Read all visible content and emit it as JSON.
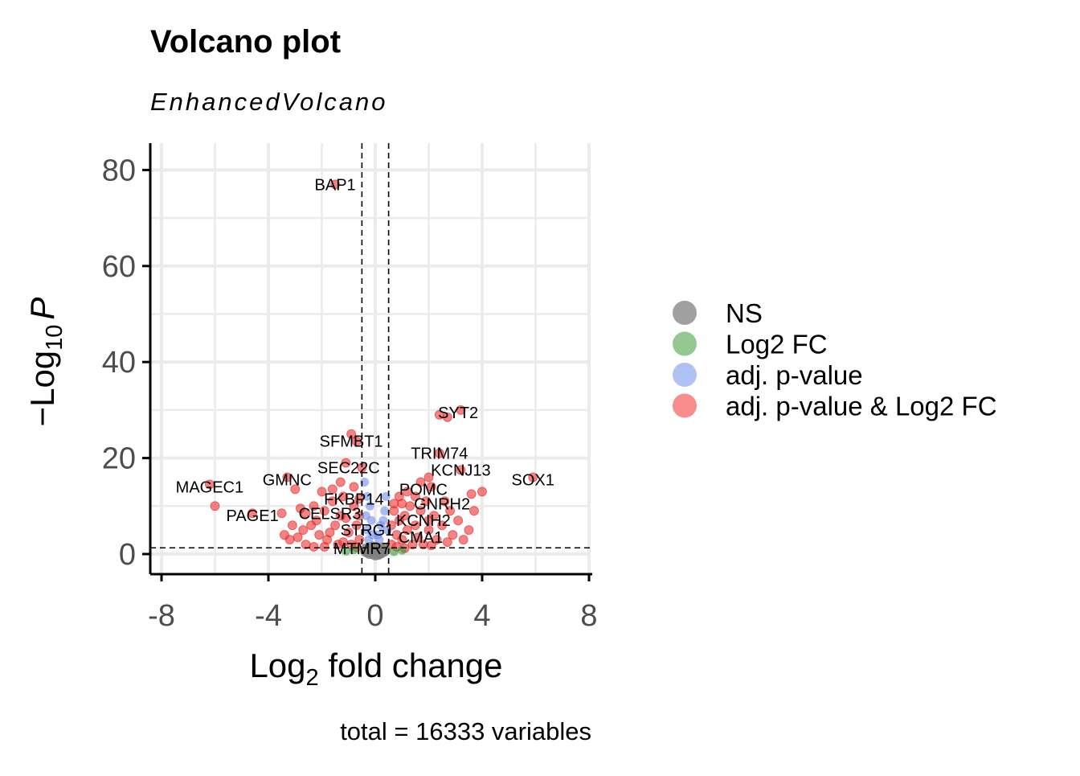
{
  "chart_data": {
    "type": "scatter",
    "title": "Volcano plot",
    "subtitle": "EnhancedVolcano",
    "xlabel": {
      "main": "Log",
      "sub": "2",
      "rest": " fold change"
    },
    "ylabel": {
      "pre": "−Log",
      "sub": "10",
      "italic": "P"
    },
    "caption": "total = 16333 variables",
    "xlim": [
      -8,
      8
    ],
    "ylim": [
      -3.5,
      86
    ],
    "x_ticks": [
      -8,
      -4,
      0,
      4,
      8
    ],
    "y_ticks": [
      0,
      20,
      40,
      60,
      80
    ],
    "fc_cutoff": 0.5,
    "p_cutoff_neglog": 1.3,
    "grid": true,
    "legend_position": "right",
    "legend": [
      {
        "key": "ns",
        "label": "NS",
        "color": "#808080"
      },
      {
        "key": "fc",
        "label": "Log2 FC",
        "color": "#3a9a3a"
      },
      {
        "key": "p",
        "label": "adj. p-value",
        "color": "#6f8eeb"
      },
      {
        "key": "both",
        "label": "adj. p-value & Log2 FC",
        "color": "#f03030"
      }
    ],
    "series": [
      {
        "key": "both",
        "points": [
          [
            -1.5,
            77
          ],
          [
            2.4,
            29
          ],
          [
            2.7,
            28.5
          ],
          [
            3.2,
            30
          ],
          [
            -0.9,
            25
          ],
          [
            -0.7,
            23.5
          ],
          [
            2.4,
            21
          ],
          [
            3.2,
            17.5
          ],
          [
            5.9,
            16
          ],
          [
            -1.1,
            19
          ],
          [
            -0.5,
            18
          ],
          [
            -3.3,
            16
          ],
          [
            -3.0,
            13.5
          ],
          [
            -6.2,
            14.5
          ],
          [
            -6.0,
            10
          ],
          [
            -4.6,
            8.5
          ],
          [
            -3.5,
            8.5
          ],
          [
            -3.1,
            6
          ],
          [
            -2.6,
            8.5
          ],
          [
            -2.7,
            5
          ],
          [
            1.7,
            15
          ],
          [
            2.0,
            16
          ],
          [
            2.1,
            14
          ],
          [
            3.6,
            12.5
          ],
          [
            4.0,
            13
          ],
          [
            3.7,
            9
          ],
          [
            3.1,
            7
          ],
          [
            3.5,
            5
          ],
          [
            -2.0,
            13
          ],
          [
            -2.3,
            10
          ],
          [
            -1.9,
            9
          ],
          [
            -1.6,
            11
          ],
          [
            -1.2,
            12
          ],
          [
            -1.3,
            8
          ],
          [
            -0.8,
            10
          ],
          [
            -0.7,
            6
          ],
          [
            -2.4,
            6
          ],
          [
            -2.1,
            4
          ],
          [
            -1.8,
            3
          ],
          [
            -1.4,
            2
          ],
          [
            -1.0,
            4.5
          ],
          [
            -0.6,
            3
          ],
          [
            -2.6,
            2
          ],
          [
            -1.9,
            1.5
          ],
          [
            0.7,
            9
          ],
          [
            0.9,
            12
          ],
          [
            1.1,
            8
          ],
          [
            1.3,
            10
          ],
          [
            1.5,
            6
          ],
          [
            1.7,
            9
          ],
          [
            2.0,
            5
          ],
          [
            2.2,
            8
          ],
          [
            2.5,
            6
          ],
          [
            2.8,
            9
          ],
          [
            0.8,
            4
          ],
          [
            1.0,
            3
          ],
          [
            1.2,
            5
          ],
          [
            1.4,
            2
          ],
          [
            1.6,
            3.5
          ],
          [
            1.8,
            2
          ],
          [
            2.3,
            3
          ],
          [
            0.6,
            6
          ],
          [
            0.6,
            2
          ],
          [
            0.9,
            7
          ],
          [
            1.9,
            11
          ],
          [
            2.6,
            11
          ],
          [
            -3.2,
            3
          ],
          [
            -2.9,
            3.5
          ],
          [
            -3.4,
            4
          ],
          [
            -1.5,
            6
          ],
          [
            -1.1,
            7.5
          ],
          [
            -0.9,
            2
          ],
          [
            2.9,
            4
          ],
          [
            3.3,
            3
          ],
          [
            -1.7,
            4.5
          ],
          [
            -2.2,
            7
          ],
          [
            0.7,
            10.5
          ],
          [
            1.2,
            13
          ],
          [
            1.5,
            12
          ],
          [
            -0.8,
            14
          ],
          [
            -1.3,
            15
          ],
          [
            -1.6,
            13.5
          ],
          [
            2.0,
            7
          ],
          [
            1.0,
            10.5
          ],
          [
            -2.8,
            9.5
          ],
          [
            -0.6,
            11.5
          ],
          [
            -0.6,
            8
          ],
          [
            0.8,
            1.5
          ],
          [
            1.1,
            1.2
          ],
          [
            -0.7,
            1.4
          ],
          [
            -1.2,
            2.5
          ],
          [
            2.1,
            1.8
          ],
          [
            2.7,
            2.5
          ],
          [
            -2.3,
            1.5
          ]
        ]
      },
      {
        "key": "p",
        "points": [
          [
            -0.4,
            15
          ],
          [
            -0.3,
            12
          ],
          [
            -0.2,
            10
          ],
          [
            -0.35,
            8
          ],
          [
            -0.15,
            7
          ],
          [
            -0.3,
            5
          ],
          [
            -0.1,
            4
          ],
          [
            0.1,
            4
          ],
          [
            0.2,
            6
          ],
          [
            0.35,
            9
          ],
          [
            0.4,
            12
          ],
          [
            0.3,
            7
          ],
          [
            0.15,
            3
          ],
          [
            -0.25,
            3
          ],
          [
            0.45,
            5
          ]
        ]
      },
      {
        "key": "fc",
        "points": [
          [
            -1.1,
            0.6
          ],
          [
            -0.8,
            0.9
          ],
          [
            0.7,
            0.5
          ],
          [
            1.0,
            0.8
          ]
        ]
      },
      {
        "key": "ns",
        "points": [
          [
            0,
            1
          ],
          [
            -0.2,
            0.5
          ],
          [
            0.2,
            0.6
          ],
          [
            -0.1,
            1.1
          ],
          [
            0.1,
            0.3
          ],
          [
            0.3,
            0.9
          ],
          [
            -0.3,
            0.8
          ],
          [
            0,
            0.2
          ]
        ]
      }
    ],
    "labels": [
      {
        "text": "BAP1",
        "x": -1.5,
        "y": 77
      },
      {
        "text": "SYT2",
        "x": 3.1,
        "y": 29.5
      },
      {
        "text": "SFMBT1",
        "x": -0.9,
        "y": 23.5
      },
      {
        "text": "TRIM74",
        "x": 2.4,
        "y": 21
      },
      {
        "text": "SEC22C",
        "x": -1.0,
        "y": 18
      },
      {
        "text": "KCNJ13",
        "x": 3.2,
        "y": 17.5
      },
      {
        "text": "SOX1",
        "x": 5.9,
        "y": 15.5
      },
      {
        "text": "GMNC",
        "x": -3.3,
        "y": 15.5
      },
      {
        "text": "MAGEC1",
        "x": -6.2,
        "y": 14
      },
      {
        "text": "POMC",
        "x": 1.8,
        "y": 13.5
      },
      {
        "text": "FKBP14",
        "x": -0.8,
        "y": 11.5
      },
      {
        "text": "GNRH2",
        "x": 2.5,
        "y": 10.5
      },
      {
        "text": "CELSR3",
        "x": -1.7,
        "y": 8.5
      },
      {
        "text": "PAGE1",
        "x": -4.6,
        "y": 8
      },
      {
        "text": "KCNH2",
        "x": 1.8,
        "y": 7
      },
      {
        "text": "STRG1",
        "x": -0.3,
        "y": 5
      },
      {
        "text": "CMA1",
        "x": 1.7,
        "y": 3.5
      },
      {
        "text": "MTMR7",
        "x": -0.5,
        "y": 1.2
      }
    ]
  }
}
